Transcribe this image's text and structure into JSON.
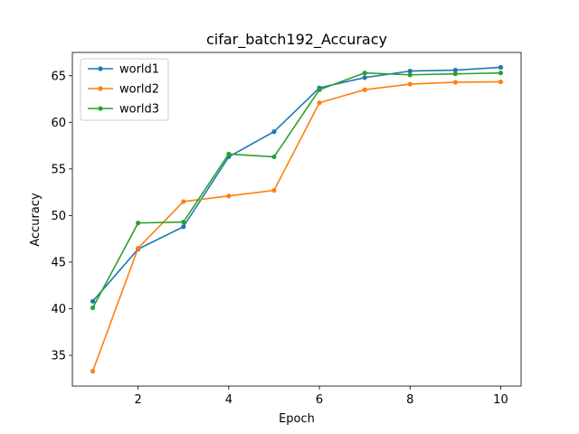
{
  "chart_data": {
    "type": "line",
    "title": "cifar_batch192_Accuracy",
    "xlabel": "Epoch",
    "ylabel": "Accuracy",
    "x": [
      1,
      2,
      3,
      4,
      5,
      6,
      7,
      8,
      9,
      10
    ],
    "xlim": [
      0.55,
      10.45
    ],
    "ylim": [
      31.7,
      67.5
    ],
    "xticks": [
      2,
      4,
      6,
      8,
      10
    ],
    "yticks": [
      35,
      40,
      45,
      50,
      55,
      60,
      65
    ],
    "grid": false,
    "legend_position": "top-left",
    "series": [
      {
        "name": "world1",
        "color": "#1f77b4",
        "values": [
          40.8,
          46.4,
          48.8,
          56.3,
          59.0,
          63.7,
          64.8,
          65.5,
          65.6,
          65.9
        ]
      },
      {
        "name": "world2",
        "color": "#ff7f0e",
        "values": [
          33.3,
          46.5,
          51.5,
          52.1,
          52.7,
          62.1,
          63.5,
          64.1,
          64.3,
          64.35
        ]
      },
      {
        "name": "world3",
        "color": "#2ca02c",
        "values": [
          40.1,
          49.2,
          49.3,
          56.6,
          56.3,
          63.5,
          65.3,
          65.1,
          65.2,
          65.3
        ]
      }
    ]
  }
}
